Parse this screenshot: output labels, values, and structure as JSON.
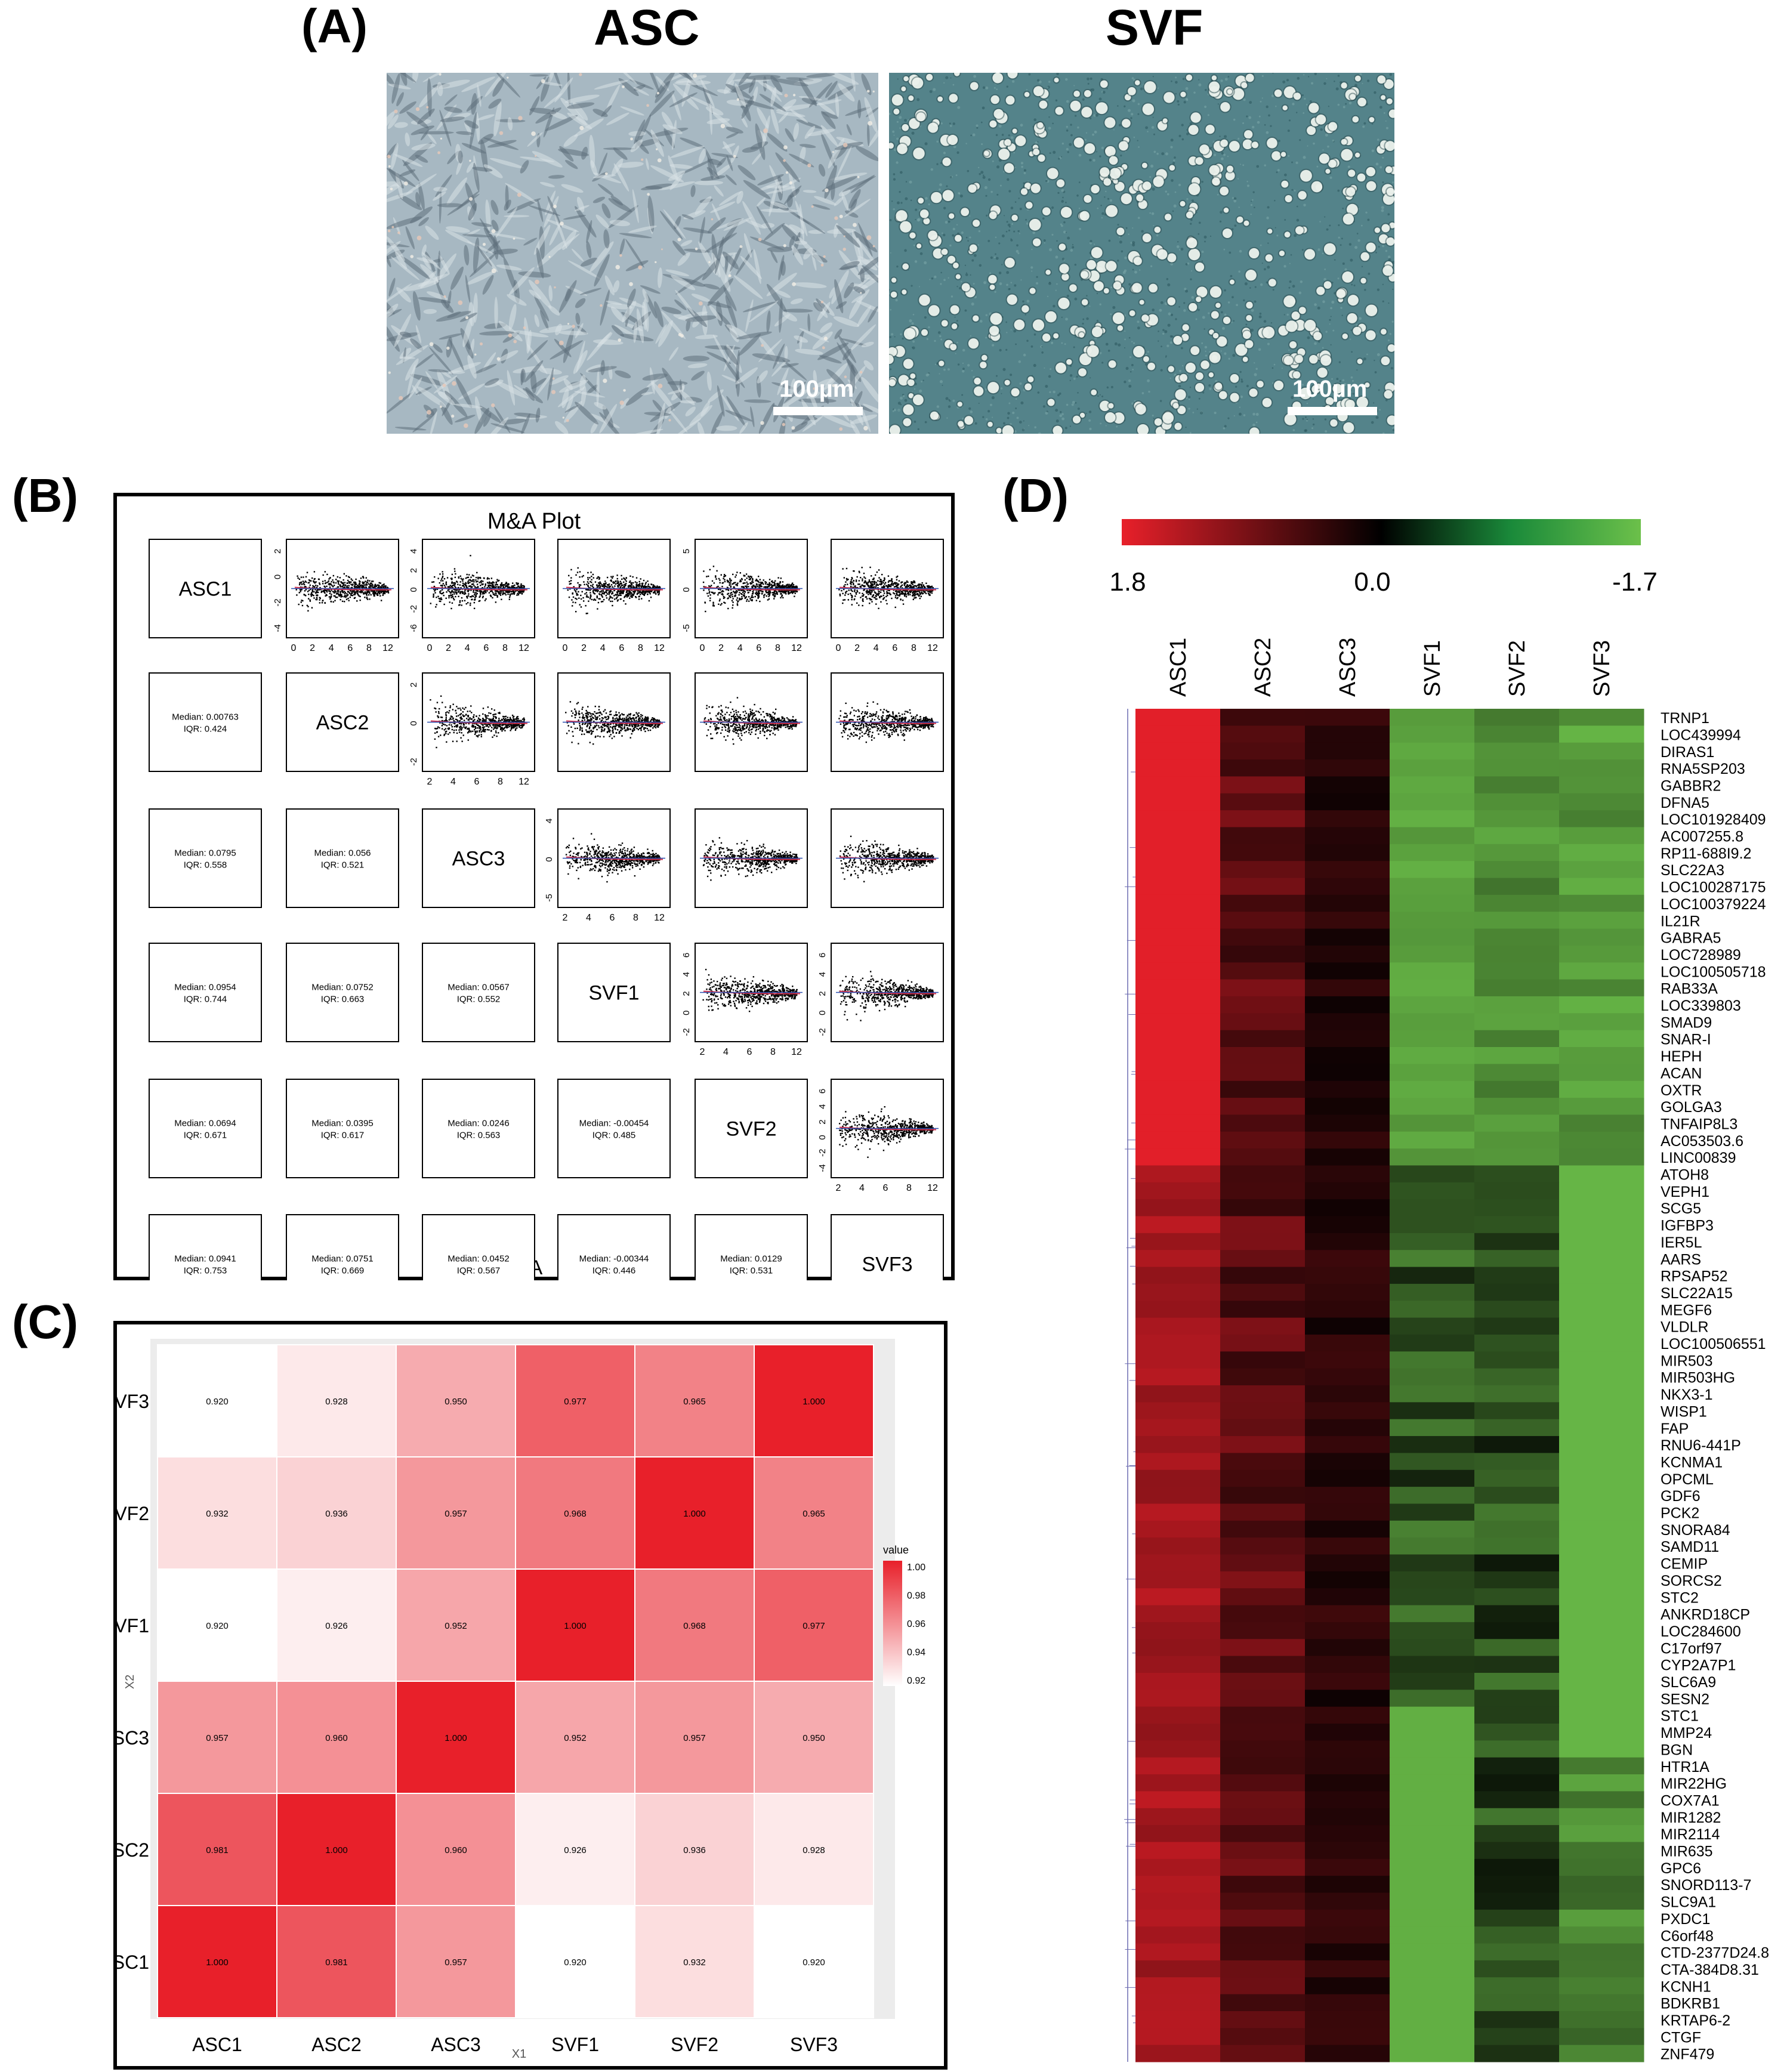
{
  "panel_A": {
    "letter": "(A)",
    "images": [
      {
        "title": "ASC",
        "scale_bar": "100µm",
        "texture": "elongated fibroblast-like adherent cells, blue-grey phase contrast"
      },
      {
        "title": "SVF",
        "scale_bar": "100µm",
        "texture": "round bright suspended cells on teal background"
      }
    ]
  },
  "panel_B": {
    "letter": "(B)",
    "title": "M&A Plot",
    "xlabel": "A",
    "ylabel": "M",
    "samples": [
      "ASC1",
      "ASC2",
      "ASC3",
      "SVF1",
      "SVF2",
      "SVF3"
    ],
    "x_ticks": [
      "2",
      "4",
      "6",
      "8",
      "12"
    ],
    "x_ticks_row1": [
      "0",
      "2",
      "4",
      "6",
      "8",
      "12"
    ],
    "y_ticks": {
      "ASC1": [
        "2",
        "0",
        "-2",
        "-4"
      ],
      "ASC2": [
        "2",
        "0",
        "-2"
      ],
      "ASC3": [
        "4",
        "0",
        "-5"
      ],
      "SVF1": [
        "6",
        "4",
        "2",
        "0",
        "-2"
      ],
      "SVF2": [
        "4",
        "2",
        "0",
        "-2",
        "-4"
      ],
      "SVF3": []
    },
    "y_ticks_col_asc2_row1": [
      "4",
      "2",
      "0",
      "-2",
      "-6"
    ],
    "y_ticks_col_asc3_row1": [
      "5",
      "0",
      "-5"
    ],
    "y_ticks_col_svf3_row4": [
      "6",
      "4",
      "2",
      "0",
      "-2"
    ],
    "y_ticks_col_svf3_row5": [
      "6",
      "4",
      "2",
      "0",
      "-2",
      "-4"
    ],
    "stats": [
      {
        "row": 2,
        "col": 1,
        "median": "Median: 0.00763",
        "iqr": "IQR: 0.424"
      },
      {
        "row": 3,
        "col": 1,
        "median": "Median: 0.0795",
        "iqr": "IQR: 0.558"
      },
      {
        "row": 3,
        "col": 2,
        "median": "Median: 0.056",
        "iqr": "IQR: 0.521"
      },
      {
        "row": 4,
        "col": 1,
        "median": "Median: 0.0954",
        "iqr": "IQR: 0.744"
      },
      {
        "row": 4,
        "col": 2,
        "median": "Median: 0.0752",
        "iqr": "IQR: 0.663"
      },
      {
        "row": 4,
        "col": 3,
        "median": "Median: 0.0567",
        "iqr": "IQR: 0.552"
      },
      {
        "row": 5,
        "col": 1,
        "median": "Median: 0.0694",
        "iqr": "IQR: 0.671"
      },
      {
        "row": 5,
        "col": 2,
        "median": "Median: 0.0395",
        "iqr": "IQR: 0.617"
      },
      {
        "row": 5,
        "col": 3,
        "median": "Median: 0.0246",
        "iqr": "IQR: 0.563"
      },
      {
        "row": 5,
        "col": 4,
        "median": "Median: -0.00454",
        "iqr": "IQR: 0.485"
      },
      {
        "row": 6,
        "col": 1,
        "median": "Median: 0.0941",
        "iqr": "IQR: 0.753"
      },
      {
        "row": 6,
        "col": 2,
        "median": "Median: 0.0751",
        "iqr": "IQR: 0.669"
      },
      {
        "row": 6,
        "col": 3,
        "median": "Median: 0.0452",
        "iqr": "IQR: 0.567"
      },
      {
        "row": 6,
        "col": 4,
        "median": "Median: -0.00344",
        "iqr": "IQR: 0.446"
      },
      {
        "row": 6,
        "col": 5,
        "median": "Median: 0.0129",
        "iqr": "IQR: 0.531"
      }
    ]
  },
  "chart_data": [
    {
      "type": "heatmap",
      "panel": "(C)",
      "xlabel": "X1",
      "ylabel": "X2",
      "x_categories": [
        "ASC1",
        "ASC2",
        "ASC3",
        "SVF1",
        "SVF2",
        "SVF3"
      ],
      "y_categories": [
        "SVF3",
        "SVF2",
        "SVF1",
        "ASC3",
        "ASC2",
        "ASC1"
      ],
      "values": [
        [
          "0.920",
          "0.928",
          "0.950",
          "0.977",
          "0.965",
          "1.000"
        ],
        [
          "0.932",
          "0.936",
          "0.957",
          "0.968",
          "1.000",
          "0.965"
        ],
        [
          "0.920",
          "0.926",
          "0.952",
          "1.000",
          "0.968",
          "0.977"
        ],
        [
          "0.957",
          "0.960",
          "1.000",
          "0.952",
          "0.957",
          "0.950"
        ],
        [
          "0.981",
          "1.000",
          "0.960",
          "0.926",
          "0.936",
          "0.928"
        ],
        [
          "1.000",
          "0.981",
          "0.957",
          "0.920",
          "0.932",
          "0.920"
        ]
      ],
      "legend_title": "value",
      "legend_ticks": [
        "1.00",
        "0.98",
        "0.96",
        "0.94",
        "0.92"
      ],
      "legend_range": [
        0.92,
        1.0
      ],
      "colors": {
        "low": "#ffffff",
        "high": "#e8202a"
      },
      "grid": false,
      "legend_position": "right"
    },
    {
      "type": "heatmap",
      "panel": "(D)",
      "columns": [
        "ASC1",
        "ASC2",
        "ASC3",
        "SVF1",
        "SVF2",
        "SVF3"
      ],
      "scale_labels": [
        "1.8",
        "0.0",
        "-1.7"
      ],
      "scale_range": [
        1.8,
        -1.7
      ],
      "colors": {
        "high": "#e8202a",
        "mid": "#000000",
        "low": "#6cc04a"
      },
      "genes": [
        "TRNP1",
        "LOC439994",
        "DIRAS1",
        "RNA5SP203",
        "GABBR2",
        "DFNA5",
        "LOC101928409",
        "AC007255.8",
        "RP11-688I9.2",
        "SLC22A3",
        "LOC100287175",
        "LOC100379224",
        "IL21R",
        "GABRA5",
        "LOC728989",
        "LOC100505718",
        "RAB33A",
        "LOC339803",
        "SMAD9",
        "SNAR-I",
        "HEPH",
        "ACAN",
        "OXTR",
        "GOLGA3",
        "TNFAIP8L3",
        "AC053503.6",
        "LINC00839",
        "ATOH8",
        "VEPH1",
        "SCG5",
        "IGFBP3",
        "IER5L",
        "AARS",
        "RPSAP52",
        "SLC22A15",
        "MEGF6",
        "VLDLR",
        "LOC100506551",
        "MIR503",
        "MIR503HG",
        "NKX3-1",
        "WISP1",
        "FAP",
        "RNU6-441P",
        "KCNMA1",
        "OPCML",
        "GDF6",
        "PCK2",
        "SNORA84",
        "SAMD11",
        "CEMIP",
        "SORCS2",
        "STC2",
        "ANKRD18CP",
        "LOC284600",
        "C17orf97",
        "CYP2A7P1",
        "SLC6A9",
        "SESN2",
        "STC1",
        "MMP24",
        "BGN",
        "HTR1A",
        "MIR22HG",
        "COX7A1",
        "MIR1282",
        "MIR2114",
        "MIR635",
        "GPC6",
        "SNORD113-7",
        "SLC9A1",
        "PXDC1",
        "C6orf48",
        "CTD-2377D24.8",
        "CTA-384D8.31",
        "KCNH1",
        "BDKRB1",
        "KRTAP6-2",
        "CTGF",
        "ZNF479"
      ]
    }
  ],
  "panel_C": {
    "letter": "(C)"
  },
  "panel_D": {
    "letter": "(D)"
  }
}
